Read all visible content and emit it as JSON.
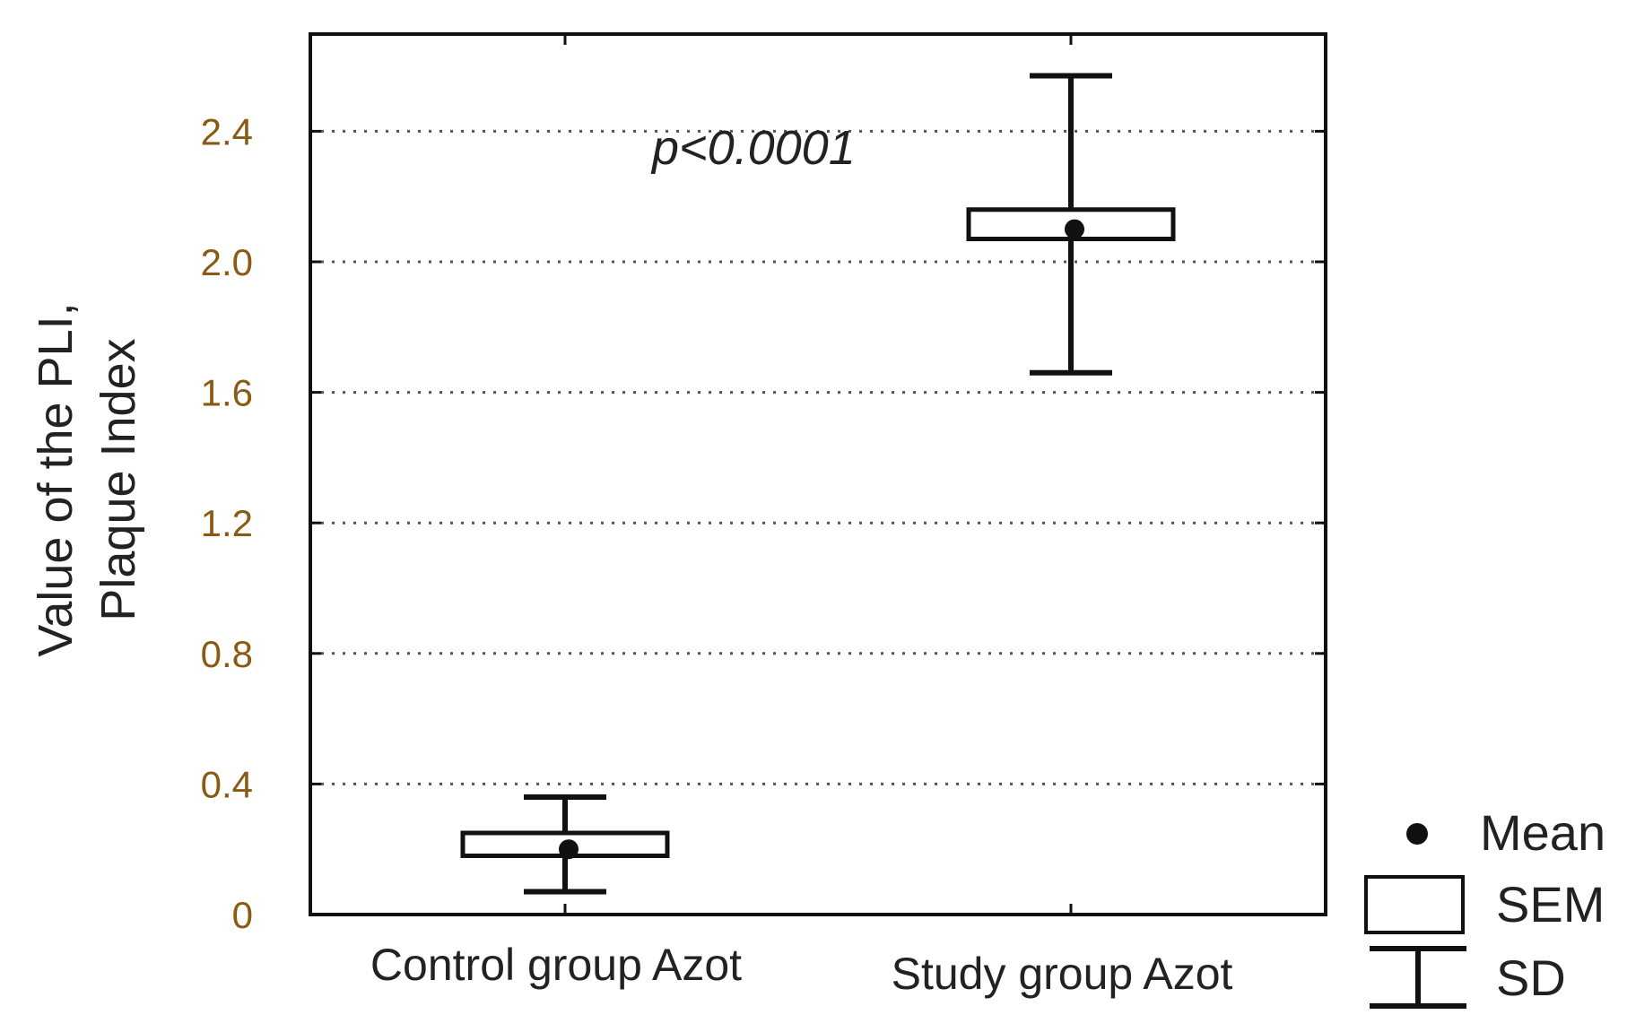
{
  "chart_data": {
    "type": "box",
    "ylabel_lines": [
      "Value of the PLI,",
      "Plaque Index"
    ],
    "categories": [
      "Control group Azot",
      "Study group Azot"
    ],
    "mean": [
      0.2,
      2.1
    ],
    "sem_low": [
      0.18,
      2.07
    ],
    "sem_high": [
      0.25,
      2.16
    ],
    "sd_low": [
      0.07,
      1.66
    ],
    "sd_high": [
      0.36,
      2.57
    ],
    "ylim": [
      0,
      2.7
    ],
    "yticks": [
      0,
      0.4,
      0.8,
      1.2,
      1.6,
      2.0,
      2.4
    ],
    "ytick_labels": [
      "0",
      "0.4",
      "0.8",
      "1.2",
      "1.6",
      "2.0",
      "2.4"
    ],
    "grid": "horizontal dotted",
    "annotation": "p<0.0001",
    "legend": {
      "placement": "bottom-right, outside plot",
      "items": [
        {
          "label": "Mean",
          "symbol": "dot"
        },
        {
          "label": "SEM",
          "symbol": "box"
        },
        {
          "label": "SD",
          "symbol": "whisker"
        }
      ]
    },
    "colors": {
      "line": "#111111",
      "tick_text": "#8a5a12",
      "grid": "#555555"
    }
  }
}
